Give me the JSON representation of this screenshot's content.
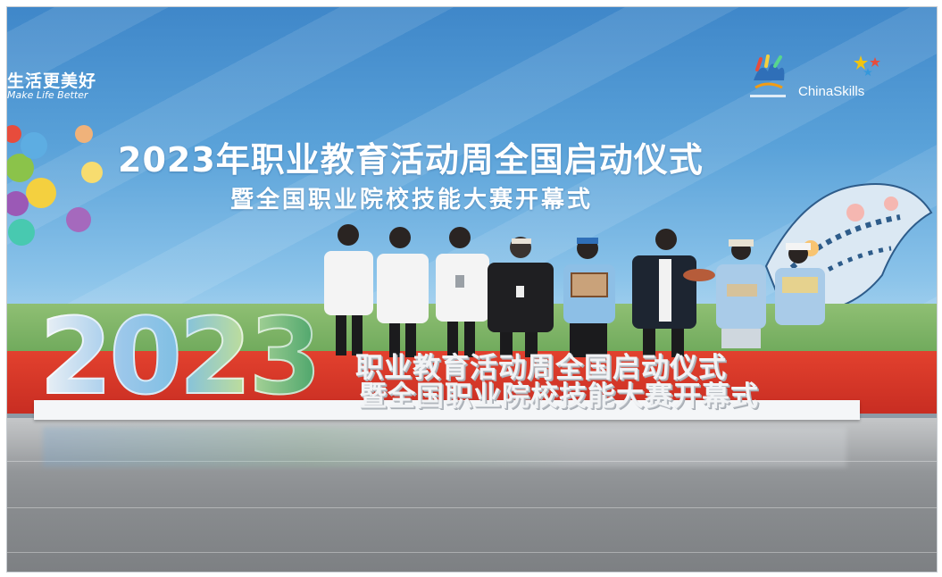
{
  "backdrop": {
    "slogan_cn": "生活更美好",
    "slogan_en": "Make Life Better",
    "title_line1": "2023年职业教育活动周全国启动仪式",
    "title_line2": "暨全国职业院校技能大赛开幕式",
    "logo_chinaskills": "ChinaSkills"
  },
  "sculpture": {
    "year": "2023",
    "line1": "职业教育活动周全国启动仪式",
    "line2": "暨全国职业院校技能大赛开幕式"
  },
  "colors": {
    "backdrop_blue": "#4a90d0",
    "carpet_red": "#d63a2a",
    "floor_gray": "#8f9295",
    "sculpture_green": "#4aa46a"
  }
}
